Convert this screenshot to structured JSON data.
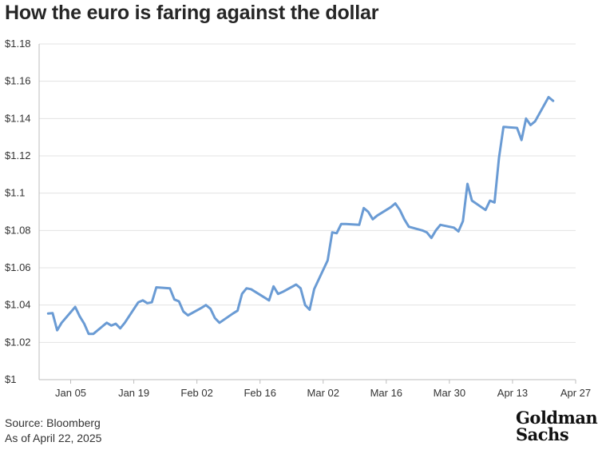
{
  "header": {
    "title": "How the euro is faring against the dollar"
  },
  "footer": {
    "source": "Source: Bloomberg",
    "as_of": "As of April 22, 2025",
    "logo_line1": "Goldman",
    "logo_line2": "Sachs"
  },
  "colors": {
    "line": "#6a9bd4",
    "grid": "#e3e3e3",
    "axis": "#bdbdbd"
  },
  "chart_data": {
    "type": "line",
    "title": "How the euro is faring against the dollar",
    "xlabel": "",
    "ylabel": "",
    "ylim": [
      1.0,
      1.18
    ],
    "xlim": [
      "2024-12-29",
      "2025-04-27"
    ],
    "grid": true,
    "legend": "none",
    "y_ticks": [
      1.0,
      1.02,
      1.04,
      1.06,
      1.08,
      1.1,
      1.12,
      1.14,
      1.16,
      1.18
    ],
    "y_tick_labels": [
      "$1",
      "$1.02",
      "$1.04",
      "$1.06",
      "$1.08",
      "$1.1",
      "$1.12",
      "$1.14",
      "$1.16",
      "$1.18"
    ],
    "x_ticks": [
      "2025-01-05",
      "2025-01-19",
      "2025-02-02",
      "2025-02-16",
      "2025-03-02",
      "2025-03-16",
      "2025-03-30",
      "2025-04-13",
      "2025-04-27"
    ],
    "x_tick_labels": [
      "Jan 05",
      "Jan 19",
      "Feb 02",
      "Feb 16",
      "Mar 02",
      "Mar 16",
      "Mar 30",
      "Apr 13",
      "Apr 27"
    ],
    "series": [
      {
        "x": [
          "2024-12-31",
          "2025-01-01",
          "2025-01-02",
          "2025-01-03",
          "2025-01-06",
          "2025-01-07",
          "2025-01-08",
          "2025-01-09",
          "2025-01-10",
          "2025-01-13",
          "2025-01-14",
          "2025-01-15",
          "2025-01-16",
          "2025-01-17",
          "2025-01-20",
          "2025-01-21",
          "2025-01-22",
          "2025-01-23",
          "2025-01-24",
          "2025-01-27",
          "2025-01-28",
          "2025-01-29",
          "2025-01-30",
          "2025-01-31",
          "2025-02-03",
          "2025-02-04",
          "2025-02-05",
          "2025-02-06",
          "2025-02-07",
          "2025-02-10",
          "2025-02-11",
          "2025-02-12",
          "2025-02-13",
          "2025-02-14",
          "2025-02-17",
          "2025-02-18",
          "2025-02-19",
          "2025-02-20",
          "2025-02-21",
          "2025-02-24",
          "2025-02-25",
          "2025-02-26",
          "2025-02-27",
          "2025-02-28",
          "2025-03-03",
          "2025-03-04",
          "2025-03-05",
          "2025-03-06",
          "2025-03-07",
          "2025-03-10",
          "2025-03-11",
          "2025-03-12",
          "2025-03-13",
          "2025-03-14",
          "2025-03-17",
          "2025-03-18",
          "2025-03-19",
          "2025-03-20",
          "2025-03-21",
          "2025-03-24",
          "2025-03-25",
          "2025-03-26",
          "2025-03-27",
          "2025-03-28",
          "2025-03-31",
          "2025-04-01",
          "2025-04-02",
          "2025-04-03",
          "2025-04-04",
          "2025-04-07",
          "2025-04-08",
          "2025-04-09",
          "2025-04-10",
          "2025-04-11",
          "2025-04-14",
          "2025-04-15",
          "2025-04-16",
          "2025-04-17",
          "2025-04-18",
          "2025-04-21",
          "2025-04-22"
        ],
        "values": [
          1.0355,
          1.0357,
          1.0265,
          1.0305,
          1.039,
          1.034,
          1.03,
          1.0245,
          1.0245,
          1.0305,
          1.029,
          1.03,
          1.0275,
          1.0305,
          1.0415,
          1.0425,
          1.041,
          1.0415,
          1.0495,
          1.049,
          1.043,
          1.042,
          1.0365,
          1.0345,
          1.0385,
          1.04,
          1.038,
          1.033,
          1.0305,
          1.0355,
          1.037,
          1.046,
          1.049,
          1.0485,
          1.044,
          1.0425,
          1.05,
          1.046,
          1.047,
          1.051,
          1.049,
          1.04,
          1.0375,
          1.0485,
          1.064,
          1.079,
          1.0785,
          1.0835,
          1.0835,
          1.083,
          1.092,
          1.09,
          1.086,
          1.088,
          1.0925,
          1.0945,
          1.091,
          1.086,
          1.082,
          1.08,
          1.079,
          1.076,
          1.08,
          1.083,
          1.0815,
          1.0795,
          1.085,
          1.105,
          1.096,
          1.091,
          1.096,
          1.095,
          1.119,
          1.1355,
          1.135,
          1.1285,
          1.14,
          1.1365,
          1.1385,
          1.1515,
          1.1495
        ]
      }
    ]
  }
}
